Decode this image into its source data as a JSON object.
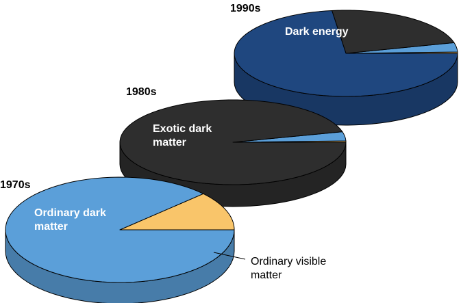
{
  "chart_data": {
    "type": "pie",
    "slice_order": [
      "ordinary_visible",
      "ordinary_dark",
      "exotic_dark",
      "dark_energy"
    ],
    "colors": {
      "ordinary_visible": "#f9c56a",
      "ordinary_dark": "#5b9fd9",
      "exotic_dark": "#2e2e2e",
      "dark_energy": "#1f477f"
    },
    "pies": [
      {
        "year_label": "1970s",
        "slice_label": "Ordinary dark\nmatter",
        "fractions": {
          "ordinary_visible": 0.12,
          "ordinary_dark": 0.88,
          "exotic_dark": 0,
          "dark_energy": 0
        }
      },
      {
        "year_label": "1980s",
        "slice_label": "Exotic dark\nmatter",
        "fractions": {
          "ordinary_visible": 0.005,
          "ordinary_dark": 0.035,
          "exotic_dark": 0.96,
          "dark_energy": 0
        }
      },
      {
        "year_label": "1990s",
        "slice_label": "Dark energy",
        "fractions": {
          "ordinary_visible": 0.005,
          "ordinary_dark": 0.035,
          "exotic_dark": 0.23,
          "dark_energy": 0.73
        }
      }
    ],
    "callout": "Ordinary visible\nmatter"
  }
}
